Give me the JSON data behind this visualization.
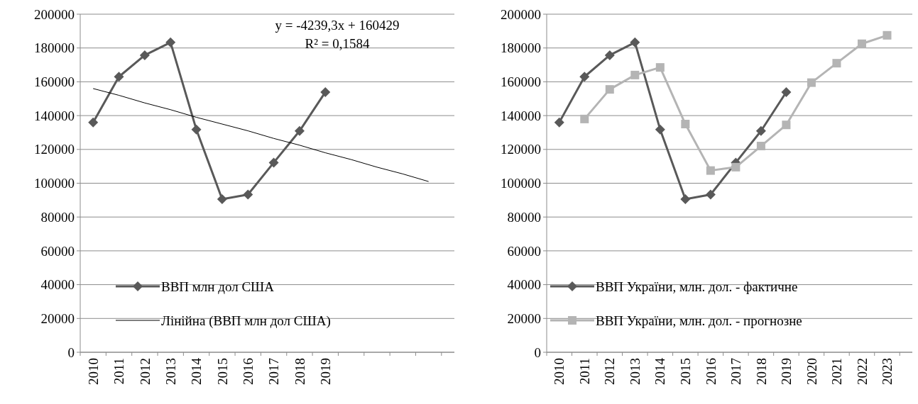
{
  "chart_data": [
    {
      "type": "line",
      "categories": [
        "2010",
        "2011",
        "2012",
        "2013",
        "2014",
        "2015",
        "2016",
        "2017",
        "2018",
        "2019",
        null,
        null,
        null,
        null
      ],
      "ylim": [
        0,
        200000
      ],
      "yticks": [
        0,
        20000,
        40000,
        60000,
        80000,
        100000,
        120000,
        140000,
        160000,
        180000,
        200000
      ],
      "grid": "y",
      "legend": "bottom left",
      "annotations": [
        "y = -4239,3x + 160429",
        "R² = 0,1584"
      ],
      "series": [
        {
          "name": "ВВП млн дол США",
          "color": "#595959",
          "marker": "diamond",
          "values": [
            136000,
            163000,
            175700,
            183300,
            131800,
            90600,
            93300,
            112200,
            130900,
            153900,
            null,
            null,
            null,
            null
          ]
        },
        {
          "name": "Лінійна (ВВП млн дол США)",
          "color": "#000000",
          "marker": "none",
          "values": [
            156000,
            152000,
            147500,
            143500,
            139000,
            135000,
            131000,
            126500,
            122500,
            118000,
            114000,
            109500,
            105500,
            101000
          ]
        }
      ]
    },
    {
      "type": "line",
      "categories": [
        "2010",
        "2011",
        "2012",
        "2013",
        "2014",
        "2015",
        "2016",
        "2017",
        "2018",
        "2019",
        "2020",
        "2021",
        "2022",
        "2023"
      ],
      "ylim": [
        0,
        200000
      ],
      "yticks": [
        0,
        20000,
        40000,
        60000,
        80000,
        100000,
        120000,
        140000,
        160000,
        180000,
        200000
      ],
      "grid": "y",
      "legend": "bottom left",
      "series": [
        {
          "name": "ВВП України, млн. дол.  - фактичне",
          "color": "#595959",
          "marker": "diamond",
          "values": [
            136000,
            163000,
            175700,
            183300,
            131800,
            90600,
            93300,
            112200,
            130900,
            153900,
            null,
            null,
            null,
            null
          ]
        },
        {
          "name": "ВВП України, млн. дол.  - прогнозне",
          "color": "#b4b4b4",
          "marker": "square",
          "values": [
            null,
            138000,
            155500,
            164000,
            168500,
            135000,
            107500,
            109500,
            122000,
            134500,
            159500,
            171000,
            182500,
            187500
          ]
        }
      ]
    }
  ]
}
